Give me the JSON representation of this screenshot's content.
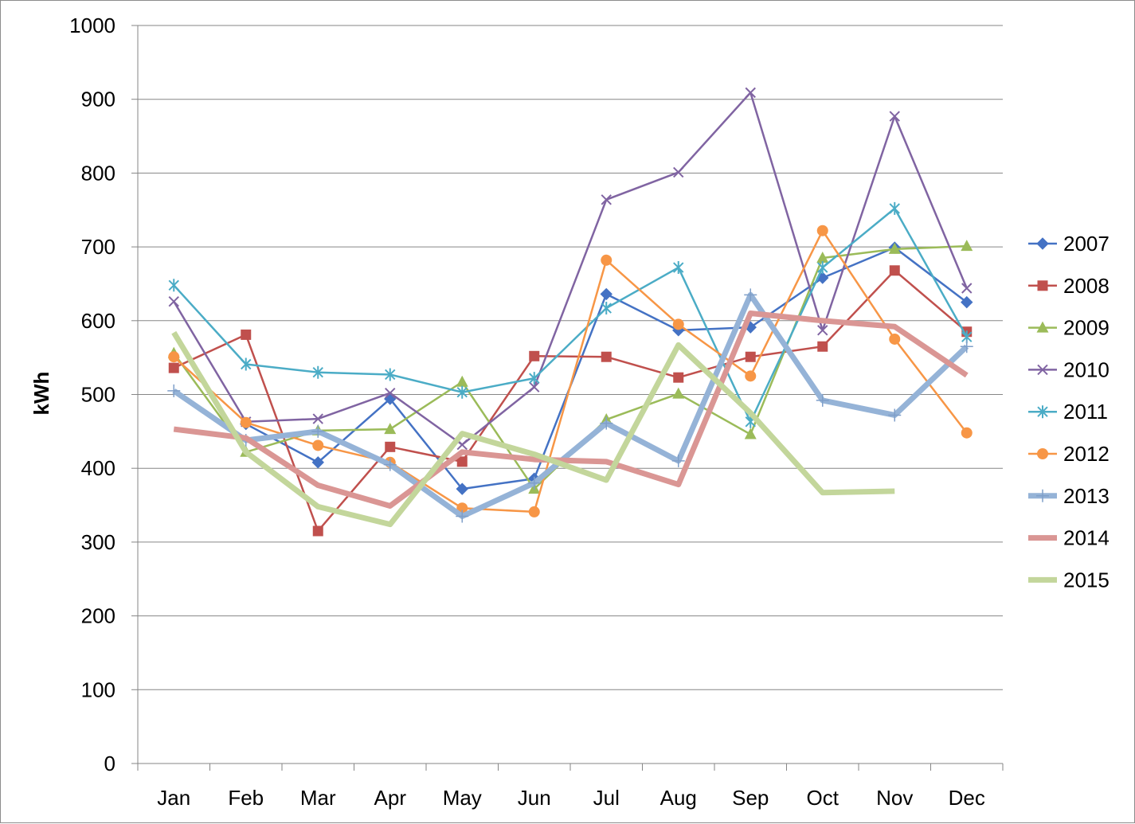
{
  "chart_data": {
    "type": "line",
    "title": "",
    "xlabel": "",
    "ylabel": "kWh",
    "ylim": [
      0,
      1000
    ],
    "yticks": [
      0,
      100,
      200,
      300,
      400,
      500,
      600,
      700,
      800,
      900,
      1000
    ],
    "grid": true,
    "legend_position": "right",
    "categories": [
      "Jan",
      "Feb",
      "Mar",
      "Apr",
      "May",
      "Jun",
      "Jul",
      "Aug",
      "Sep",
      "Oct",
      "Nov",
      "Dec"
    ],
    "series": [
      {
        "name": "2007",
        "color": "#4472C4",
        "marker": "diamond",
        "width": "thin",
        "values": [
          null,
          460,
          408,
          494,
          372,
          386,
          636,
          587,
          591,
          658,
          699,
          625
        ]
      },
      {
        "name": "2008",
        "color": "#C0504D",
        "marker": "square",
        "width": "thin",
        "values": [
          536,
          581,
          315,
          429,
          409,
          552,
          551,
          523,
          551,
          565,
          668,
          585
        ]
      },
      {
        "name": "2009",
        "color": "#9BBB59",
        "marker": "triangle",
        "width": "thin",
        "values": [
          556,
          422,
          451,
          453,
          517,
          372,
          466,
          501,
          446,
          685,
          697,
          701
        ]
      },
      {
        "name": "2010",
        "color": "#8064A2",
        "marker": "x",
        "width": "thin",
        "values": [
          626,
          463,
          467,
          502,
          432,
          510,
          764,
          801,
          909,
          587,
          877,
          644
        ]
      },
      {
        "name": "2011",
        "color": "#4BACC6",
        "marker": "star",
        "width": "thin",
        "values": [
          648,
          541,
          530,
          527,
          503,
          522,
          617,
          672,
          463,
          672,
          752,
          578
        ]
      },
      {
        "name": "2012",
        "color": "#F79646",
        "marker": "circle",
        "width": "thin",
        "values": [
          551,
          462,
          431,
          408,
          346,
          341,
          682,
          595,
          525,
          722,
          575,
          448
        ]
      },
      {
        "name": "2013",
        "color": "#95B3D7",
        "marker": "plus",
        "width": "thick",
        "values": [
          505,
          438,
          450,
          405,
          335,
          380,
          461,
          410,
          635,
          492,
          472,
          565
        ]
      },
      {
        "name": "2014",
        "color": "#DA9694",
        "marker": "none",
        "width": "thick",
        "values": [
          453,
          441,
          377,
          349,
          422,
          412,
          409,
          378,
          610,
          600,
          592,
          526
        ]
      },
      {
        "name": "2015",
        "color": "#C3D69B",
        "marker": "none",
        "width": "thick",
        "values": [
          584,
          422,
          348,
          324,
          447,
          419,
          384,
          567,
          475,
          367,
          369,
          null
        ]
      }
    ]
  }
}
